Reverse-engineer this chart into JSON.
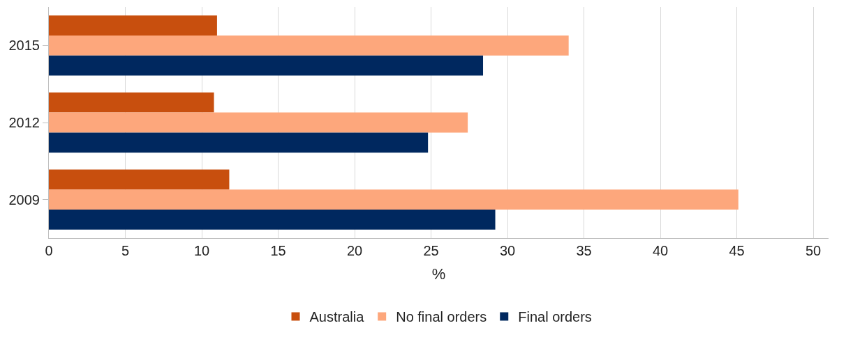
{
  "chart_data": {
    "type": "bar",
    "orientation": "horizontal",
    "xlabel": "%",
    "categories": [
      "2015",
      "2012",
      "2009"
    ],
    "series": [
      {
        "name": "Australia",
        "color": "#c84f0e",
        "values": [
          11.0,
          10.8,
          11.8
        ]
      },
      {
        "name": "No final orders",
        "color": "#fda77c",
        "values": [
          34.0,
          27.4,
          45.1
        ]
      },
      {
        "name": "Final orders",
        "color": "#00285f",
        "values": [
          28.4,
          24.8,
          29.2
        ]
      }
    ],
    "xlim": [
      0,
      51
    ],
    "xticks": [
      0,
      5,
      10,
      15,
      20,
      25,
      30,
      35,
      40,
      45,
      50
    ],
    "grid": "x",
    "legend": "bottom"
  }
}
